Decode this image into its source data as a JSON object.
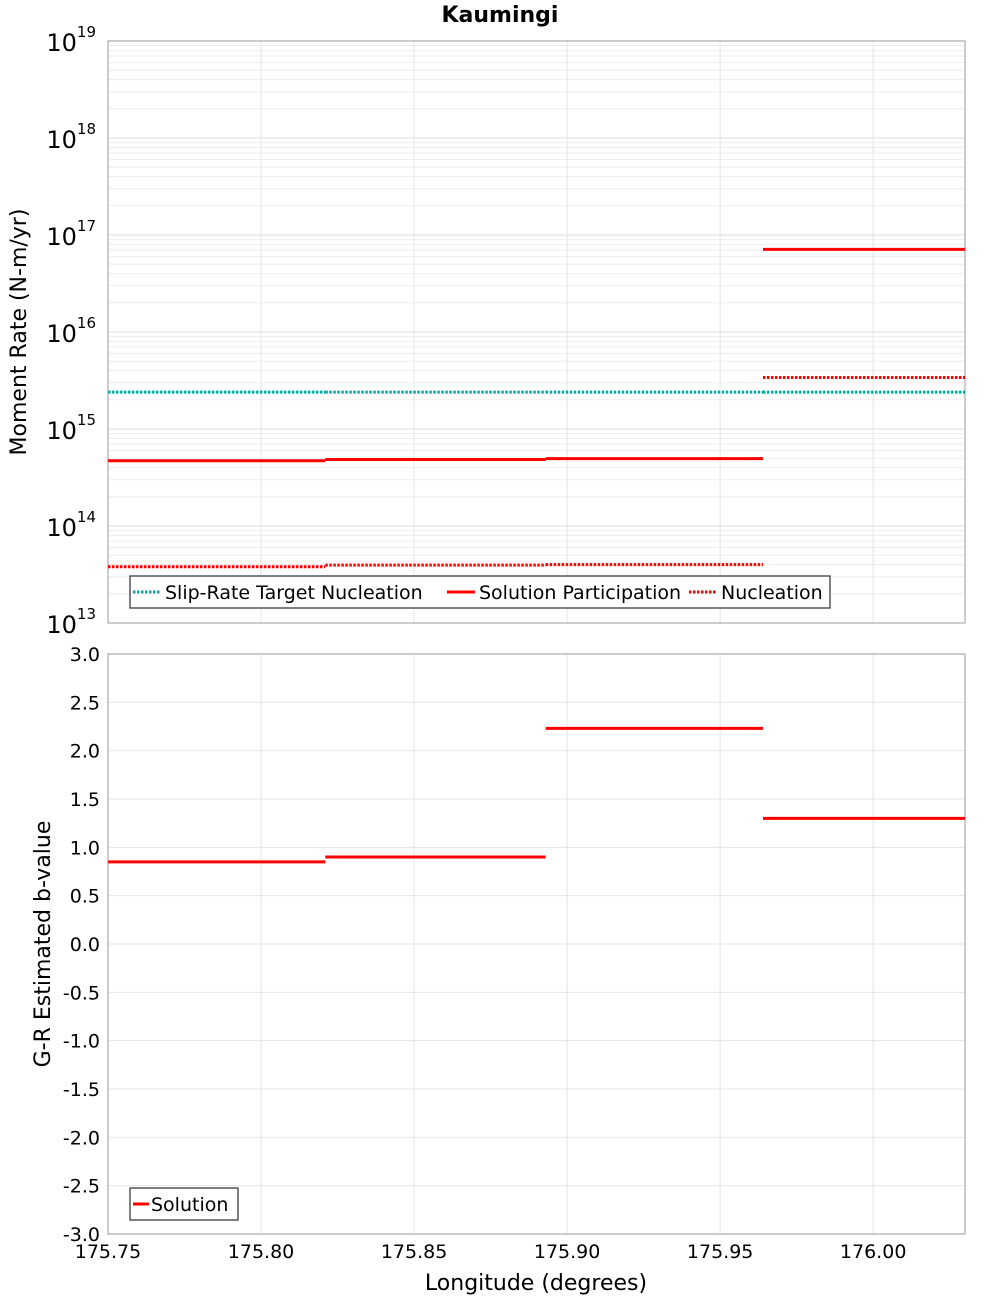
{
  "chart_data": [
    {
      "type": "line",
      "title": "Kaumingi",
      "xlabel": "Longitude (degrees)",
      "ylabel": "Moment Rate (N-m/yr)",
      "yscale": "log",
      "xlim": [
        175.75,
        176.03
      ],
      "ylim": [
        10000000000000.0,
        1e+19
      ],
      "y_ticks": [
        {
          "base": "10",
          "exp": "13",
          "value": 10000000000000.0
        },
        {
          "base": "10",
          "exp": "14",
          "value": 100000000000000.0
        },
        {
          "base": "10",
          "exp": "15",
          "value": 1000000000000000.0
        },
        {
          "base": "10",
          "exp": "16",
          "value": 1e+16
        },
        {
          "base": "10",
          "exp": "17",
          "value": 1e+17
        },
        {
          "base": "10",
          "exp": "18",
          "value": 1e+18
        },
        {
          "base": "10",
          "exp": "19",
          "value": 1e+19
        }
      ],
      "grid": true,
      "legend_position": "bottom-left",
      "series": [
        {
          "name": "Slip-Rate Target Nucleation",
          "color": "#00aaaa",
          "style": "dotted",
          "segments": [
            {
              "x0": 175.75,
              "x1": 175.821,
              "y": 2400000000000000.0
            },
            {
              "x0": 175.821,
              "x1": 175.893,
              "y": 2400000000000000.0
            },
            {
              "x0": 175.893,
              "x1": 175.964,
              "y": 2400000000000000.0
            },
            {
              "x0": 175.964,
              "x1": 176.03,
              "y": 2400000000000000.0
            }
          ]
        },
        {
          "name": "Solution Participation",
          "color": "#ff0000",
          "style": "solid",
          "segments": [
            {
              "x0": 175.75,
              "x1": 175.821,
              "y": 470000000000000.0
            },
            {
              "x0": 175.821,
              "x1": 175.893,
              "y": 485000000000000.0
            },
            {
              "x0": 175.893,
              "x1": 175.964,
              "y": 495000000000000.0
            },
            {
              "x0": 175.964,
              "x1": 176.03,
              "y": 7.1e+16
            }
          ]
        },
        {
          "name": "Nucleation",
          "color": "#ff0000",
          "style": "dotted",
          "segments": [
            {
              "x0": 175.75,
              "x1": 175.821,
              "y": 38000000000000.0
            },
            {
              "x0": 175.821,
              "x1": 175.893,
              "y": 39500000000000.0
            },
            {
              "x0": 175.893,
              "x1": 175.964,
              "y": 40000000000000.0
            },
            {
              "x0": 175.964,
              "x1": 176.03,
              "y": 3400000000000000.0
            }
          ]
        }
      ]
    },
    {
      "type": "line",
      "xlabel": "Longitude (degrees)",
      "ylabel": "G-R Estimated b-value",
      "yscale": "linear",
      "xlim": [
        175.75,
        176.03
      ],
      "ylim": [
        -3.0,
        3.0
      ],
      "x_ticks": [
        "175.75",
        "175.80",
        "175.85",
        "175.90",
        "175.95",
        "176.00"
      ],
      "y_ticks": [
        "3.0",
        "2.5",
        "2.0",
        "1.5",
        "1.0",
        "0.5",
        "0.0",
        "-0.5",
        "-1.0",
        "-1.5",
        "-2.0",
        "-2.5",
        "-3.0"
      ],
      "grid": true,
      "legend_position": "bottom-left",
      "series": [
        {
          "name": "Solution",
          "color": "#ff0000",
          "style": "solid",
          "segments": [
            {
              "x0": 175.75,
              "x1": 175.821,
              "y": 0.85
            },
            {
              "x0": 175.821,
              "x1": 175.893,
              "y": 0.9
            },
            {
              "x0": 175.893,
              "x1": 175.964,
              "y": 2.23
            },
            {
              "x0": 175.964,
              "x1": 176.03,
              "y": 1.3
            }
          ]
        }
      ]
    }
  ]
}
